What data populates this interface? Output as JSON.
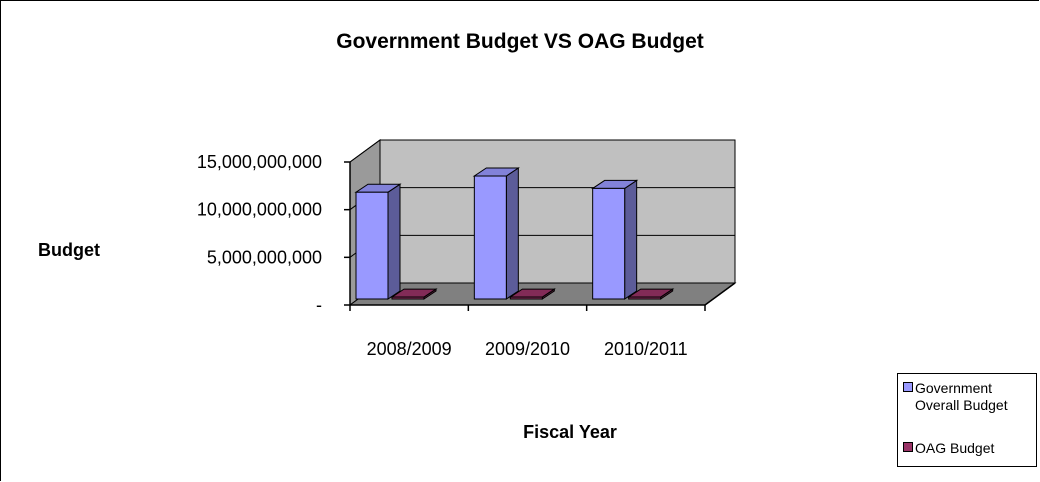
{
  "chart_data": {
    "type": "bar",
    "title": "Government Budget VS OAG Budget",
    "xlabel": "Fiscal Year",
    "ylabel": "Budget",
    "categories": [
      "2008/2009",
      "2009/2010",
      "2010/2011"
    ],
    "series": [
      {
        "name": "Government Overall Budget",
        "color": "#9999ff",
        "values": [
          11200000000,
          12900000000,
          11600000000
        ]
      },
      {
        "name": "OAG Budget",
        "color": "#993366",
        "values": [
          200000000,
          200000000,
          200000000
        ]
      }
    ],
    "y_ticks": [
      {
        "value": 0,
        "label": "-"
      },
      {
        "value": 5000000000,
        "label": "5,000,000,000"
      },
      {
        "value": 10000000000,
        "label": "10,000,000,000"
      },
      {
        "value": 15000000000,
        "label": "15,000,000,000"
      }
    ],
    "ylim": [
      0,
      15000000000
    ],
    "grid": true,
    "style": "3d-column",
    "wall_color": "#c0c0c0",
    "floor_color": "#808080",
    "legend_position": "bottom-right"
  }
}
